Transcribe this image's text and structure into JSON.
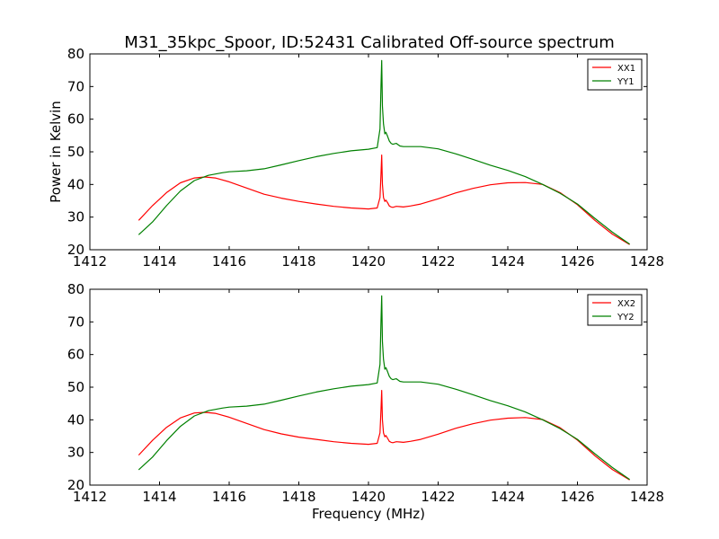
{
  "title": "M31_35kpc_Spoor, ID:52431 Calibrated Off-source spectrum",
  "colors": {
    "XX": "#ff0000",
    "YY": "#008000"
  },
  "chart_data": [
    {
      "type": "line",
      "title": "M31_35kpc_Spoor, ID:52431 Calibrated Off-source spectrum",
      "xlabel": "",
      "ylabel": "Power in Kelvin",
      "xlim": [
        1412,
        1428
      ],
      "ylim": [
        20,
        80
      ],
      "xticks": [
        1412,
        1414,
        1416,
        1418,
        1420,
        1422,
        1424,
        1426,
        1428
      ],
      "yticks": [
        20,
        30,
        40,
        50,
        60,
        70,
        80
      ],
      "grid": false,
      "legend": "top-right",
      "series": [
        {
          "name": "XX1",
          "color": "#ff0000",
          "x": [
            1413.4,
            1413.8,
            1414.2,
            1414.6,
            1415.0,
            1415.3,
            1415.6,
            1416.0,
            1416.5,
            1417.0,
            1417.5,
            1418.0,
            1418.5,
            1419.0,
            1419.5,
            1420.0,
            1420.25,
            1420.33,
            1420.36,
            1420.38,
            1420.4,
            1420.43,
            1420.47,
            1420.5,
            1420.55,
            1420.6,
            1420.65,
            1420.7,
            1420.8,
            1420.9,
            1421.0,
            1421.2,
            1421.5,
            1422.0,
            1422.5,
            1423.0,
            1423.5,
            1424.0,
            1424.5,
            1425.0,
            1425.5,
            1426.0,
            1426.5,
            1427.0,
            1427.5
          ],
          "y": [
            29.0,
            33.5,
            37.5,
            40.5,
            42.0,
            42.3,
            42.0,
            40.8,
            38.9,
            37.0,
            35.8,
            34.8,
            34.0,
            33.3,
            32.8,
            32.5,
            32.8,
            36.0,
            43.0,
            49.0,
            40.0,
            36.0,
            34.8,
            35.2,
            34.4,
            33.4,
            33.1,
            33.0,
            33.3,
            33.2,
            33.1,
            33.4,
            34.0,
            35.6,
            37.4,
            38.8,
            39.9,
            40.5,
            40.6,
            40.0,
            37.5,
            33.8,
            29.0,
            24.8,
            21.6
          ]
        },
        {
          "name": "YY1",
          "color": "#008000",
          "x": [
            1413.4,
            1413.8,
            1414.2,
            1414.6,
            1415.0,
            1415.4,
            1415.8,
            1416.0,
            1416.5,
            1417.0,
            1417.5,
            1418.0,
            1418.5,
            1419.0,
            1419.5,
            1420.0,
            1420.25,
            1420.33,
            1420.36,
            1420.38,
            1420.4,
            1420.43,
            1420.47,
            1420.5,
            1420.55,
            1420.6,
            1420.65,
            1420.7,
            1420.8,
            1420.9,
            1421.0,
            1421.5,
            1422.0,
            1422.5,
            1423.0,
            1423.5,
            1424.0,
            1424.5,
            1425.0,
            1425.5,
            1426.0,
            1426.5,
            1427.0,
            1427.5
          ],
          "y": [
            24.6,
            28.5,
            33.5,
            38.0,
            41.2,
            42.8,
            43.6,
            43.9,
            44.2,
            44.8,
            46.0,
            47.3,
            48.5,
            49.5,
            50.3,
            50.8,
            51.3,
            57.0,
            70.0,
            78.0,
            64.0,
            58.5,
            55.5,
            56.0,
            54.7,
            53.3,
            52.6,
            52.3,
            52.6,
            51.8,
            51.6,
            51.6,
            50.9,
            49.4,
            47.7,
            45.9,
            44.3,
            42.4,
            40.0,
            37.3,
            34.0,
            29.6,
            25.4,
            21.7
          ]
        }
      ]
    },
    {
      "type": "line",
      "title": "",
      "xlabel": "Frequency (MHz)",
      "ylabel": "",
      "xlim": [
        1412,
        1428
      ],
      "ylim": [
        20,
        80
      ],
      "xticks": [
        1412,
        1414,
        1416,
        1418,
        1420,
        1422,
        1424,
        1426,
        1428
      ],
      "yticks": [
        20,
        30,
        40,
        50,
        60,
        70,
        80
      ],
      "grid": false,
      "legend": "top-right",
      "series": [
        {
          "name": "XX2",
          "color": "#ff0000",
          "x": [
            1413.4,
            1413.8,
            1414.2,
            1414.6,
            1415.0,
            1415.3,
            1415.6,
            1416.0,
            1416.5,
            1417.0,
            1417.5,
            1418.0,
            1418.5,
            1419.0,
            1419.5,
            1420.0,
            1420.25,
            1420.33,
            1420.36,
            1420.38,
            1420.4,
            1420.43,
            1420.47,
            1420.5,
            1420.55,
            1420.6,
            1420.65,
            1420.7,
            1420.8,
            1420.9,
            1421.0,
            1421.2,
            1421.5,
            1422.0,
            1422.5,
            1423.0,
            1423.5,
            1424.0,
            1424.5,
            1425.0,
            1425.5,
            1426.0,
            1426.5,
            1427.0,
            1427.5
          ],
          "y": [
            29.2,
            33.7,
            37.7,
            40.6,
            42.1,
            42.3,
            42.0,
            40.8,
            38.9,
            37.0,
            35.7,
            34.7,
            34.0,
            33.3,
            32.8,
            32.5,
            32.8,
            36.0,
            43.0,
            49.0,
            40.0,
            36.0,
            34.8,
            35.2,
            34.3,
            33.4,
            33.1,
            33.0,
            33.3,
            33.2,
            33.1,
            33.4,
            34.0,
            35.6,
            37.4,
            38.8,
            39.9,
            40.5,
            40.7,
            40.1,
            37.6,
            33.8,
            29.0,
            24.8,
            21.6
          ]
        },
        {
          "name": "YY2",
          "color": "#008000",
          "x": [
            1413.4,
            1413.8,
            1414.2,
            1414.6,
            1415.0,
            1415.4,
            1415.8,
            1416.0,
            1416.5,
            1417.0,
            1417.5,
            1418.0,
            1418.5,
            1419.0,
            1419.5,
            1420.0,
            1420.25,
            1420.33,
            1420.36,
            1420.38,
            1420.4,
            1420.43,
            1420.47,
            1420.5,
            1420.55,
            1420.6,
            1420.65,
            1420.7,
            1420.8,
            1420.9,
            1421.0,
            1421.5,
            1422.0,
            1422.5,
            1423.0,
            1423.5,
            1424.0,
            1424.5,
            1425.0,
            1425.5,
            1426.0,
            1426.5,
            1427.0,
            1427.5
          ],
          "y": [
            24.7,
            28.6,
            33.6,
            38.0,
            41.2,
            42.8,
            43.6,
            43.9,
            44.2,
            44.8,
            46.0,
            47.3,
            48.5,
            49.5,
            50.3,
            50.8,
            51.3,
            57.0,
            70.0,
            78.0,
            64.0,
            58.5,
            55.5,
            56.0,
            54.7,
            53.3,
            52.6,
            52.3,
            52.6,
            51.8,
            51.6,
            51.6,
            50.9,
            49.4,
            47.7,
            45.9,
            44.3,
            42.4,
            40.0,
            37.3,
            34.0,
            29.6,
            25.4,
            21.7
          ]
        }
      ]
    }
  ]
}
